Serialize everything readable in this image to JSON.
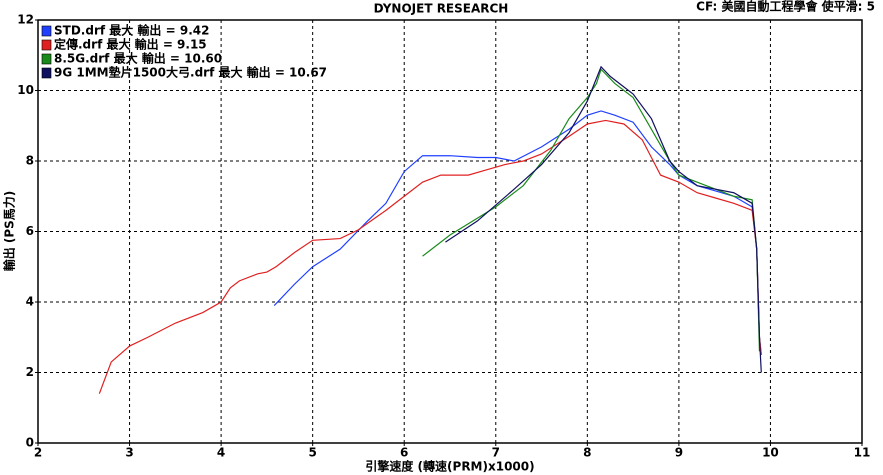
{
  "chart_data": {
    "type": "line",
    "title": "DYNOJET RESEARCH",
    "subtitle": "CF: 美國自動工程學會  使平滑: 5",
    "x_label": "引擎速度 (轉速(PRM)x1000)",
    "y_label": "輸出 (PS馬力)",
    "xlim": [
      2,
      11
    ],
    "xticks": [
      2,
      3,
      4,
      5,
      6,
      7,
      8,
      9,
      10,
      11
    ],
    "ylim": [
      0,
      12
    ],
    "yticks": [
      0,
      2,
      4,
      6,
      8,
      10,
      12
    ],
    "grid": true,
    "series": [
      {
        "name": "STD.drf 最大 輸出 = 9.42",
        "color": "#2040ff",
        "x": [
          4.58,
          4.8,
          5,
          5.3,
          5.6,
          5.8,
          6,
          6.2,
          6.5,
          6.8,
          7,
          7.2,
          7.5,
          7.8,
          8,
          8.15,
          8.3,
          8.5,
          8.7,
          8.9,
          9,
          9.2,
          9.4,
          9.6,
          9.8,
          9.85,
          9.88,
          9.9
        ],
        "values": [
          3.9,
          4.5,
          5.0,
          5.5,
          6.3,
          6.8,
          7.7,
          8.15,
          8.15,
          8.1,
          8.1,
          8.0,
          8.4,
          8.9,
          9.3,
          9.42,
          9.3,
          9.1,
          8.4,
          7.9,
          7.6,
          7.3,
          7.15,
          7.0,
          6.7,
          5.5,
          3.0,
          2.5
        ]
      },
      {
        "name": "定傳.drf 最大 輸出 = 9.15",
        "color": "#e02020",
        "x": [
          2.67,
          2.8,
          3,
          3.2,
          3.5,
          3.8,
          4,
          4.1,
          4.2,
          4.4,
          4.5,
          4.6,
          4.8,
          5,
          5.3,
          5.5,
          5.8,
          6,
          6.2,
          6.4,
          6.7,
          6.9,
          7.1,
          7.3,
          7.5,
          7.8,
          8,
          8.2,
          8.4,
          8.6,
          8.7,
          8.8,
          9,
          9.2,
          9.4,
          9.6,
          9.8,
          9.85,
          9.88,
          9.9
        ],
        "values": [
          1.4,
          2.3,
          2.75,
          3.0,
          3.4,
          3.7,
          4.0,
          4.4,
          4.6,
          4.8,
          4.85,
          5.0,
          5.4,
          5.75,
          5.8,
          6.05,
          6.6,
          7.0,
          7.4,
          7.6,
          7.6,
          7.75,
          7.9,
          8.0,
          8.2,
          8.7,
          9.05,
          9.15,
          9.05,
          8.6,
          8.1,
          7.6,
          7.4,
          7.1,
          6.95,
          6.8,
          6.6,
          5.5,
          3.0,
          2.5
        ]
      },
      {
        "name": "8.5G.drf 最大 輸出 = 10.60",
        "color": "#1a8a1a",
        "x": [
          6.2,
          6.5,
          7,
          7.3,
          7.6,
          7.8,
          8,
          8.1,
          8.15,
          8.3,
          8.5,
          8.7,
          8.9,
          9,
          9.2,
          9.4,
          9.6,
          9.8,
          9.85,
          9.88
        ],
        "values": [
          5.3,
          5.9,
          6.7,
          7.3,
          8.3,
          9.2,
          9.8,
          10.2,
          10.6,
          10.2,
          9.8,
          8.9,
          8.0,
          7.6,
          7.4,
          7.2,
          7.0,
          6.9,
          5.5,
          2.6
        ]
      },
      {
        "name": "9G 1MM墊片1500大弓.drf 最大 輸出 = 10.67",
        "color": "#101060",
        "x": [
          6.45,
          6.8,
          7.2,
          7.5,
          7.8,
          8,
          8.15,
          8.25,
          8.4,
          8.5,
          8.7,
          8.9,
          9,
          9.2,
          9.4,
          9.6,
          9.8,
          9.85,
          9.88,
          9.9
        ],
        "values": [
          5.7,
          6.3,
          7.2,
          7.9,
          8.8,
          9.7,
          10.67,
          10.4,
          10.1,
          9.9,
          9.2,
          8.0,
          7.7,
          7.3,
          7.2,
          7.1,
          6.8,
          5.5,
          3.0,
          2.0
        ]
      }
    ]
  }
}
